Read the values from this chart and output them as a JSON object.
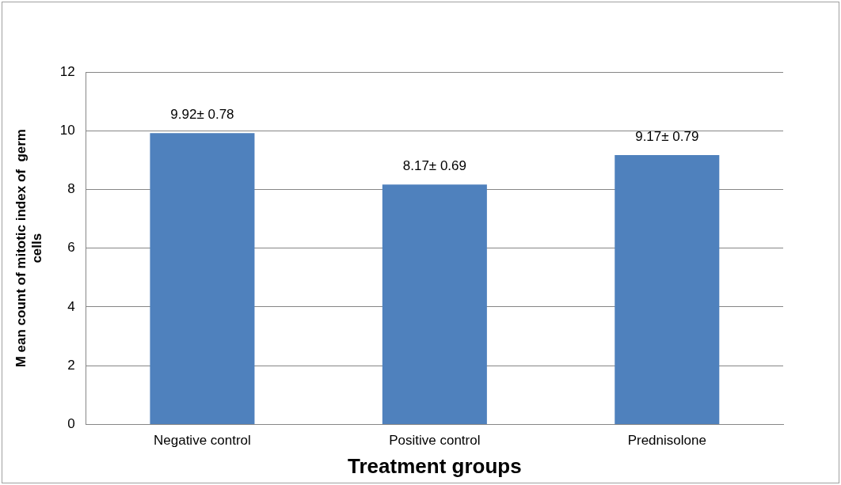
{
  "chart_data": {
    "type": "bar",
    "xlabel": "Treatment groups",
    "ylabel": "M ean count of mitotic index of  germ cells",
    "categories": [
      "Negative control",
      "Positive control",
      "Prednisolone"
    ],
    "values": [
      9.92,
      8.17,
      9.17
    ],
    "color": "#4f81bd",
    "value_labels": [
      "9.92± 0.78",
      "8.17± 0.69",
      "9.17± 0.79"
    ],
    "ylim": [
      0,
      12
    ],
    "yticks": [
      0,
      2,
      4,
      6,
      8,
      10,
      12
    ],
    "grid": "y",
    "legend": false
  }
}
